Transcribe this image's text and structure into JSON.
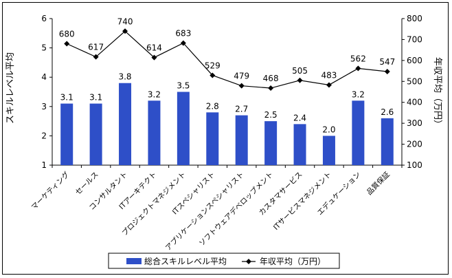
{
  "chart_data": {
    "type": "bar+line",
    "categories": [
      "マーケティング",
      "セールス",
      "コンサルタント",
      "ITアーキテクト",
      "プロジェクトマネジメント",
      "ITスペシャリスト",
      "アプリケーションスペシャリスト",
      "ソフトウェアデベロップメント",
      "カスタマサービス",
      "ITサービスマネジメント",
      "エデュケーション",
      "品質保証"
    ],
    "series": [
      {
        "name": "総合スキルレベル平均",
        "type": "bar",
        "axis": "left",
        "values": [
          3.1,
          3.1,
          3.8,
          3.2,
          3.5,
          2.8,
          2.7,
          2.5,
          2.4,
          2.0,
          3.2,
          2.6
        ],
        "labels": [
          "3.1",
          "3.1",
          "3.8",
          "3.2",
          "3.5",
          "2.8",
          "2.7",
          "2.5",
          "2.4",
          "2.0",
          "3.2",
          "2.6"
        ]
      },
      {
        "name": "年収平均（万円）",
        "type": "line",
        "axis": "right",
        "values": [
          680,
          617,
          740,
          614,
          683,
          529,
          479,
          468,
          505,
          483,
          562,
          547
        ]
      }
    ],
    "ylabel": "スキルレベル平均",
    "y2label": "年収平均（万円）",
    "ylim": [
      1,
      6
    ],
    "y2lim": [
      100,
      800
    ],
    "yticks": [
      "1",
      "2",
      "3",
      "4",
      "5",
      "6"
    ],
    "y2ticks": [
      "100",
      "200",
      "300",
      "400",
      "500",
      "600",
      "700",
      "800"
    ],
    "grid": false,
    "legend": "bottom",
    "colors": {
      "bar": "#2e4fc8",
      "line": "#000000"
    }
  }
}
